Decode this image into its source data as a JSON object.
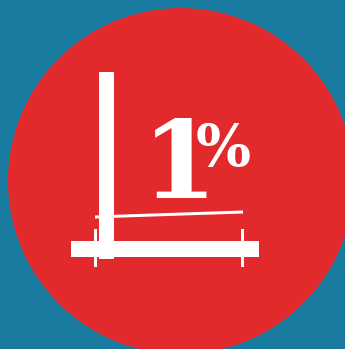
{
  "badge": {
    "number": "1",
    "unit": "%"
  },
  "colors": {
    "background": "#1a7ba1",
    "badge_fill": "#e2292b",
    "foreground": "#ffffff"
  },
  "icons": [
    "percent-badge-icon",
    "axis-graph-icon"
  ]
}
